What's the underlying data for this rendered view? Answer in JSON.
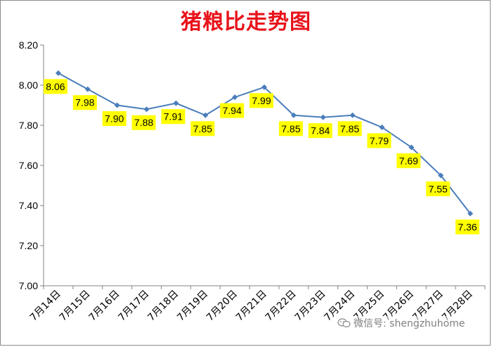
{
  "chart_data": {
    "type": "line",
    "title": "猪粮比走势图",
    "categories": [
      "7月14日",
      "7月15日",
      "7月16日",
      "7月17日",
      "7月18日",
      "7月19日",
      "7月20日",
      "7月21日",
      "7月22日",
      "7月23日",
      "7月24日",
      "7月25日",
      "7月26日",
      "7月27日",
      "7月28日"
    ],
    "values": [
      8.06,
      7.98,
      7.9,
      7.88,
      7.91,
      7.85,
      7.94,
      7.99,
      7.85,
      7.84,
      7.85,
      7.79,
      7.69,
      7.55,
      7.36
    ],
    "data_labels": [
      "8.06",
      "7.98",
      "7.90",
      "7.88",
      "7.91",
      "7.85",
      "7.94",
      "7.99",
      "7.85",
      "7.84",
      "7.85",
      "7.79",
      "7.69",
      "7.55",
      "7.36"
    ],
    "ylim": [
      7.0,
      8.2
    ],
    "yticks": [
      "7.00",
      "7.20",
      "7.40",
      "7.60",
      "7.80",
      "8.00",
      "8.20"
    ],
    "grid": false,
    "legend": "none",
    "colors": {
      "line": "#4a7ebb",
      "marker": "#4a7ebb",
      "label_bg": "#ffff00",
      "title": "#e8131b"
    }
  },
  "watermark": {
    "text": "微信号: shengzhuhome",
    "icon": "wechat-icon"
  }
}
